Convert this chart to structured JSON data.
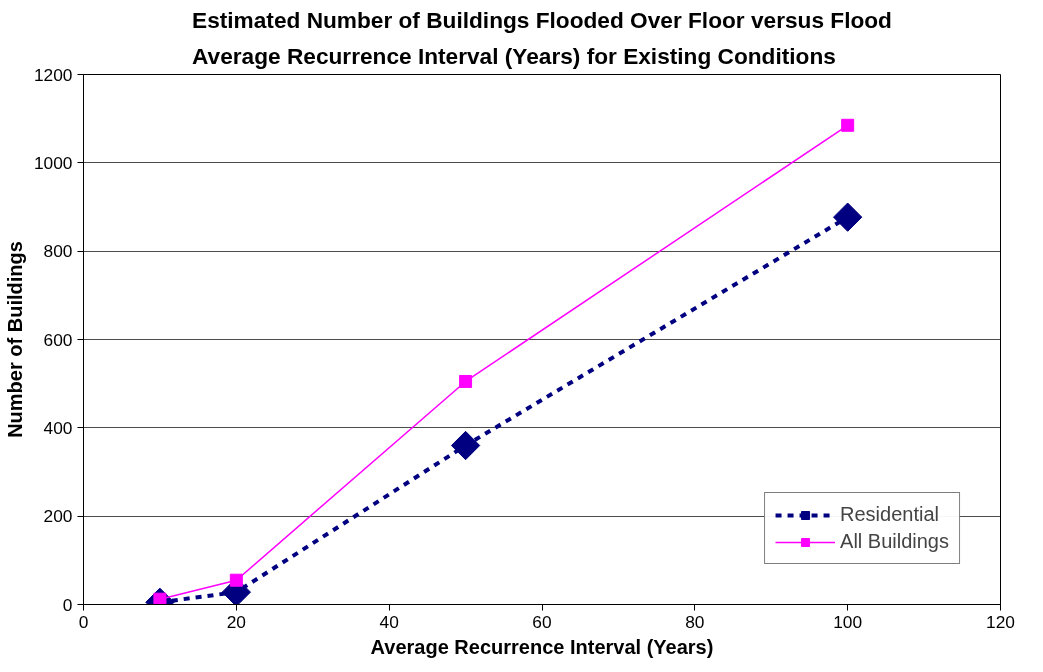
{
  "chart_data": {
    "type": "line",
    "title": "Estimated Number of Buildings Flooded Over Floor versus Flood\nAverage Recurrence Interval (Years) for Existing Conditions",
    "xlabel": "Average Recurrence Interval (Years)",
    "ylabel": "Number of Buildings",
    "x": [
      10,
      20,
      50,
      100
    ],
    "series": [
      {
        "name": "Residential",
        "color": "#000080",
        "values": [
          5,
          28,
          360,
          877
        ],
        "marker": "diamond",
        "line_style": "dashed"
      },
      {
        "name": "All Buildings",
        "color": "#ff00ff",
        "values": [
          12,
          55,
          505,
          1085
        ],
        "marker": "square",
        "line_style": "solid"
      }
    ],
    "xlim": [
      0,
      120
    ],
    "xticks": [
      0,
      20,
      40,
      60,
      80,
      100,
      120
    ],
    "ylim": [
      0,
      1200
    ],
    "yticks": [
      0,
      200,
      400,
      600,
      800,
      1000,
      1200
    ],
    "grid": "y",
    "legend": "bottom right"
  }
}
